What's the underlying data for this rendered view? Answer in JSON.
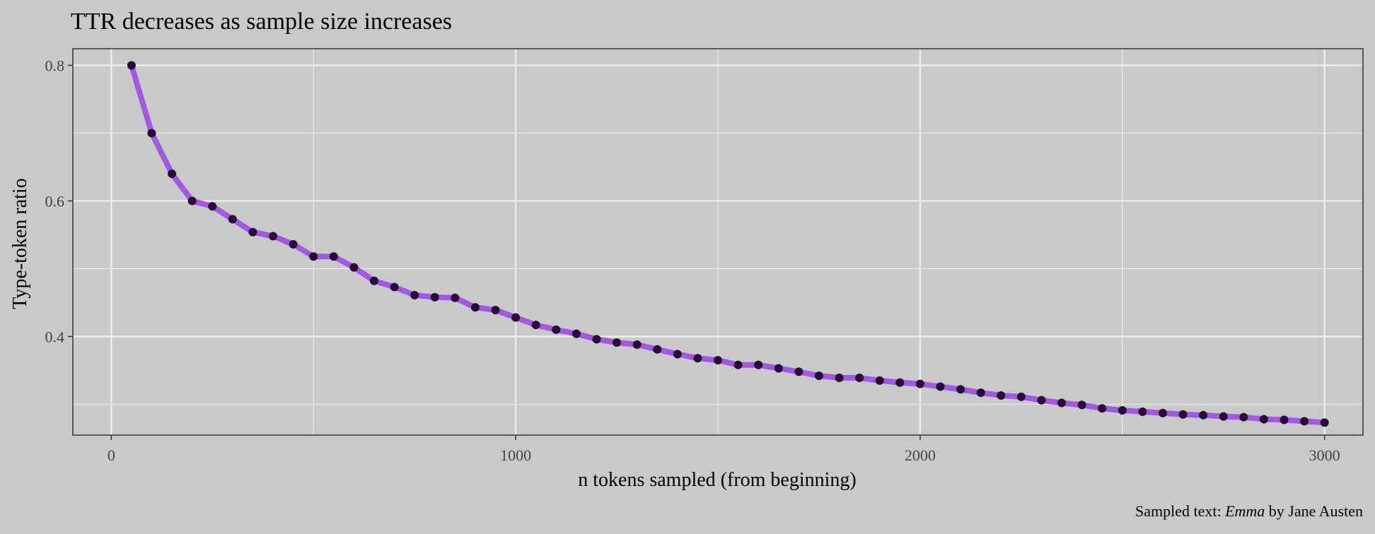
{
  "colors": {
    "background": "#c9c9c9",
    "grid": "#ececec",
    "line": "#a259e0",
    "point": "#2a0a3a",
    "frame": "#333333"
  },
  "chart_data": {
    "type": "line",
    "title": "TTR decreases as sample size increases",
    "xlabel": "n tokens sampled (from beginning)",
    "ylabel": "Type-token ratio",
    "caption": {
      "prefix": "Sampled text: ",
      "work": "Emma",
      "suffix": " by Jane Austen"
    },
    "xlim": [
      -95,
      3095
    ],
    "ylim": [
      0.2545,
      0.8245
    ],
    "x_ticks": [
      0,
      1000,
      2000,
      3000
    ],
    "x_tick_labels": [
      "0",
      "1000",
      "2000",
      "3000"
    ],
    "x_minor_ticks": [
      500,
      1500,
      2500
    ],
    "y_ticks": [
      0.4,
      0.6,
      0.8
    ],
    "y_tick_labels": [
      "0.4",
      "0.6",
      "0.8"
    ],
    "y_minor_ticks": [
      0.3,
      0.5,
      0.7
    ],
    "grid": true,
    "series": [
      {
        "x": [
          50,
          100,
          150,
          200,
          250,
          300,
          350,
          400,
          450,
          500,
          550,
          600,
          650,
          700,
          750,
          800,
          850,
          900,
          950,
          1000,
          1050,
          1100,
          1150,
          1200,
          1250,
          1300,
          1350,
          1400,
          1450,
          1500,
          1550,
          1600,
          1650,
          1700,
          1750,
          1800,
          1850,
          1900,
          1950,
          2000,
          2050,
          2100,
          2150,
          2200,
          2250,
          2300,
          2350,
          2400,
          2450,
          2500,
          2550,
          2600,
          2650,
          2700,
          2750,
          2800,
          2850,
          2900,
          2950,
          3000
        ],
        "y": [
          0.8,
          0.7,
          0.64,
          0.6,
          0.592,
          0.573,
          0.554,
          0.548,
          0.536,
          0.518,
          0.518,
          0.502,
          0.482,
          0.473,
          0.461,
          0.458,
          0.457,
          0.443,
          0.439,
          0.428,
          0.417,
          0.41,
          0.404,
          0.396,
          0.391,
          0.388,
          0.381,
          0.374,
          0.368,
          0.365,
          0.358,
          0.358,
          0.353,
          0.348,
          0.342,
          0.339,
          0.339,
          0.335,
          0.332,
          0.33,
          0.326,
          0.322,
          0.317,
          0.313,
          0.311,
          0.306,
          0.302,
          0.299,
          0.294,
          0.291,
          0.289,
          0.287,
          0.285,
          0.284,
          0.282,
          0.281,
          0.278,
          0.277,
          0.275,
          0.273
        ]
      }
    ]
  }
}
